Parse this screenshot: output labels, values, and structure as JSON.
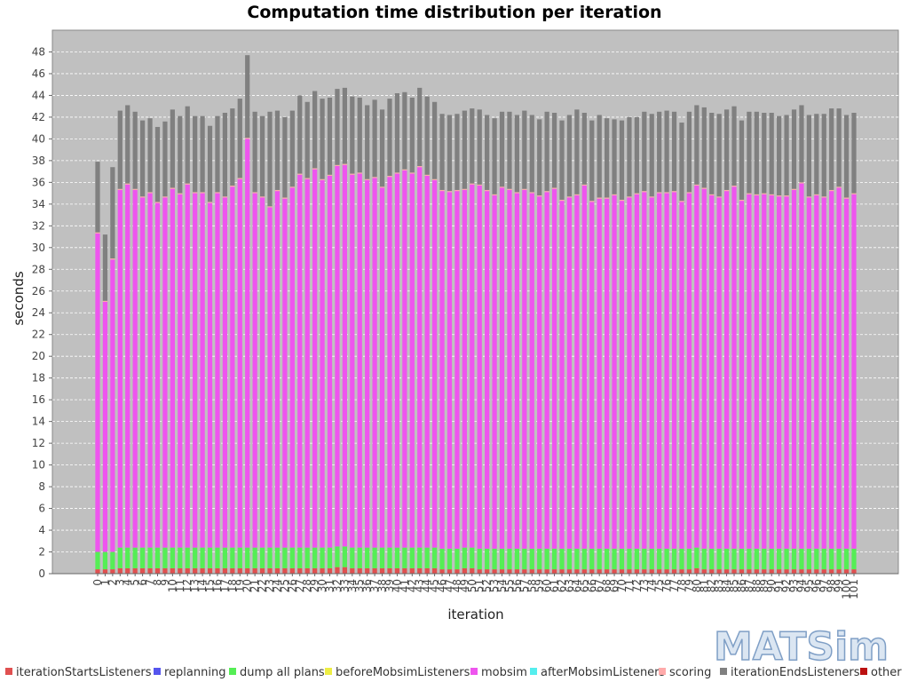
{
  "chart_data": {
    "type": "bar",
    "stacked": true,
    "title": "Computation time distribution per iteration",
    "xlabel": "iteration",
    "ylabel": "seconds",
    "ylim": [
      0,
      50
    ],
    "yticks": [
      0,
      2,
      4,
      6,
      8,
      10,
      12,
      14,
      16,
      18,
      20,
      22,
      24,
      26,
      28,
      30,
      32,
      34,
      36,
      38,
      40,
      42,
      44,
      46,
      48
    ],
    "grid": true,
    "legend_position": "bottom",
    "plot_background": "#c0c0c0",
    "categories": [
      "0",
      "1",
      "2",
      "3",
      "4",
      "5",
      "6",
      "7",
      "8",
      "9",
      "10",
      "11",
      "12",
      "13",
      "14",
      "15",
      "16",
      "17",
      "18",
      "19",
      "20",
      "21",
      "22",
      "23",
      "24",
      "25",
      "26",
      "27",
      "28",
      "29",
      "30",
      "31",
      "32",
      "33",
      "34",
      "35",
      "36",
      "37",
      "38",
      "39",
      "40",
      "41",
      "42",
      "43",
      "44",
      "45",
      "46",
      "47",
      "48",
      "49",
      "50",
      "51",
      "52",
      "53",
      "54",
      "55",
      "56",
      "57",
      "58",
      "59",
      "60",
      "61",
      "62",
      "63",
      "64",
      "65",
      "66",
      "67",
      "68",
      "69",
      "70",
      "71",
      "72",
      "73",
      "74",
      "75",
      "76",
      "77",
      "78",
      "79",
      "80",
      "81",
      "82",
      "83",
      "84",
      "85",
      "86",
      "87",
      "88",
      "89",
      "90",
      "91",
      "92",
      "93",
      "94",
      "95",
      "96",
      "97",
      "98",
      "99",
      "100",
      "101"
    ],
    "series": [
      {
        "name": "iterationStartsListeners",
        "color": "#e05050",
        "values": [
          0.4,
          0.4,
          0.4,
          0.5,
          0.5,
          0.5,
          0.5,
          0.5,
          0.5,
          0.5,
          0.5,
          0.5,
          0.5,
          0.5,
          0.5,
          0.5,
          0.5,
          0.5,
          0.5,
          0.5,
          0.5,
          0.5,
          0.5,
          0.5,
          0.5,
          0.5,
          0.5,
          0.5,
          0.5,
          0.5,
          0.5,
          0.5,
          0.6,
          0.6,
          0.5,
          0.5,
          0.5,
          0.5,
          0.5,
          0.5,
          0.5,
          0.5,
          0.5,
          0.5,
          0.5,
          0.5,
          0.4,
          0.4,
          0.4,
          0.5,
          0.5,
          0.4,
          0.4,
          0.4,
          0.4,
          0.4,
          0.4,
          0.4,
          0.4,
          0.4,
          0.4,
          0.4,
          0.4,
          0.4,
          0.4,
          0.4,
          0.4,
          0.4,
          0.4,
          0.4,
          0.4,
          0.4,
          0.4,
          0.4,
          0.4,
          0.4,
          0.4,
          0.4,
          0.4,
          0.4,
          0.5,
          0.4,
          0.4,
          0.4,
          0.4,
          0.4,
          0.4,
          0.4,
          0.4,
          0.4,
          0.4,
          0.4,
          0.4,
          0.4,
          0.4,
          0.4,
          0.4,
          0.4,
          0.4,
          0.4,
          0.4,
          0.4
        ]
      },
      {
        "name": "replanning",
        "color": "#5555ee",
        "values": [
          0,
          0,
          0,
          0,
          0,
          0,
          0,
          0,
          0,
          0,
          0,
          0,
          0,
          0,
          0,
          0,
          0,
          0,
          0,
          0,
          0,
          0,
          0,
          0,
          0,
          0,
          0,
          0,
          0,
          0,
          0,
          0,
          0,
          0,
          0,
          0,
          0,
          0,
          0,
          0,
          0,
          0,
          0,
          0,
          0,
          0,
          0,
          0,
          0,
          0,
          0,
          0,
          0,
          0,
          0,
          0,
          0,
          0,
          0,
          0,
          0,
          0,
          0,
          0,
          0,
          0,
          0,
          0,
          0,
          0,
          0,
          0,
          0,
          0,
          0,
          0,
          0,
          0,
          0,
          0,
          0,
          0,
          0,
          0,
          0,
          0,
          0,
          0,
          0,
          0,
          0,
          0,
          0,
          0,
          0,
          0,
          0,
          0,
          0,
          0,
          0,
          0
        ]
      },
      {
        "name": "dump all plans",
        "color": "#55ee55",
        "values": [
          1.6,
          1.6,
          1.6,
          1.9,
          1.9,
          1.9,
          1.9,
          1.9,
          1.9,
          1.9,
          1.9,
          1.9,
          1.9,
          1.9,
          1.9,
          1.9,
          1.9,
          1.9,
          1.9,
          1.9,
          1.9,
          1.9,
          1.9,
          1.9,
          1.9,
          1.9,
          1.9,
          1.9,
          1.9,
          1.9,
          1.9,
          1.9,
          1.9,
          1.9,
          1.9,
          1.9,
          1.9,
          1.9,
          1.9,
          1.9,
          1.9,
          1.9,
          1.9,
          1.9,
          1.9,
          1.9,
          1.9,
          1.9,
          1.9,
          1.9,
          1.9,
          1.9,
          1.9,
          1.9,
          1.9,
          1.9,
          1.9,
          1.9,
          1.9,
          1.9,
          1.9,
          1.9,
          1.9,
          1.9,
          1.9,
          1.9,
          1.9,
          1.9,
          1.9,
          1.9,
          1.9,
          1.9,
          1.9,
          1.9,
          1.9,
          1.9,
          1.9,
          1.9,
          1.9,
          1.9,
          1.9,
          1.9,
          1.9,
          1.9,
          1.9,
          1.9,
          1.9,
          1.9,
          1.9,
          1.9,
          1.9,
          1.9,
          1.9,
          1.9,
          1.9,
          1.9,
          1.9,
          1.9,
          1.9,
          1.9,
          1.9,
          1.9
        ]
      },
      {
        "name": "beforeMobsimListeners",
        "color": "#eeee44",
        "values": [
          0,
          0,
          0,
          0,
          0,
          0,
          0,
          0,
          0,
          0,
          0,
          0,
          0,
          0,
          0,
          0,
          0,
          0,
          0,
          0,
          0,
          0,
          0,
          0,
          0,
          0,
          0,
          0,
          0,
          0,
          0,
          0,
          0,
          0,
          0,
          0,
          0,
          0,
          0,
          0,
          0,
          0,
          0,
          0,
          0,
          0,
          0,
          0,
          0,
          0,
          0,
          0,
          0,
          0,
          0,
          0,
          0,
          0,
          0,
          0,
          0,
          0,
          0,
          0,
          0,
          0,
          0,
          0,
          0,
          0,
          0,
          0,
          0,
          0,
          0,
          0,
          0,
          0,
          0,
          0,
          0,
          0,
          0,
          0,
          0,
          0,
          0,
          0,
          0,
          0,
          0,
          0,
          0,
          0,
          0,
          0,
          0,
          0,
          0,
          0,
          0,
          0
        ]
      },
      {
        "name": "mobsim",
        "color": "#ee55ee",
        "values": [
          29.3,
          23.0,
          26.9,
          32.9,
          33.4,
          32.9,
          32.2,
          32.6,
          31.7,
          32.2,
          33.0,
          32.5,
          33.4,
          32.6,
          32.6,
          31.7,
          32.6,
          32.2,
          33.2,
          33.9,
          37.6,
          32.6,
          32.2,
          31.3,
          32.8,
          32.1,
          33.1,
          34.3,
          33.9,
          34.8,
          33.8,
          34.2,
          35.0,
          35.1,
          34.3,
          34.4,
          33.8,
          34.0,
          33.1,
          34.1,
          34.4,
          34.7,
          34.4,
          35.0,
          34.2,
          33.8,
          32.9,
          32.8,
          32.9,
          32.9,
          33.4,
          33.4,
          32.9,
          32.5,
          33.2,
          33.0,
          32.7,
          33.0,
          32.7,
          32.4,
          32.8,
          33.1,
          32.0,
          32.3,
          32.5,
          33.4,
          31.9,
          32.2,
          32.2,
          32.5,
          32.0,
          32.3,
          32.6,
          32.8,
          32.3,
          32.7,
          32.7,
          32.8,
          31.9,
          32.7,
          33.3,
          33.1,
          32.5,
          32.3,
          32.9,
          33.3,
          32.0,
          32.6,
          32.5,
          32.6,
          32.5,
          32.4,
          32.4,
          33.0,
          33.6,
          32.3,
          32.5,
          32.3,
          32.9,
          33.2,
          32.2,
          32.6
        ]
      },
      {
        "name": "afterMobsimListeners",
        "color": "#55eeee",
        "values": [
          0,
          0,
          0,
          0,
          0,
          0,
          0,
          0,
          0,
          0,
          0,
          0,
          0,
          0,
          0,
          0,
          0,
          0,
          0,
          0,
          0,
          0,
          0,
          0,
          0,
          0,
          0,
          0,
          0,
          0,
          0,
          0,
          0,
          0,
          0,
          0,
          0,
          0,
          0,
          0,
          0,
          0,
          0,
          0,
          0,
          0,
          0,
          0,
          0,
          0,
          0,
          0,
          0,
          0,
          0,
          0,
          0,
          0,
          0,
          0,
          0,
          0,
          0,
          0,
          0,
          0,
          0,
          0,
          0,
          0,
          0,
          0,
          0,
          0,
          0,
          0,
          0,
          0,
          0,
          0,
          0,
          0,
          0,
          0,
          0,
          0,
          0,
          0,
          0,
          0,
          0,
          0,
          0,
          0,
          0,
          0,
          0,
          0,
          0,
          0,
          0,
          0
        ]
      },
      {
        "name": "scoring",
        "color": "#ffaaaa",
        "values": [
          0.1,
          0.1,
          0.1,
          0.1,
          0.1,
          0.1,
          0.1,
          0.1,
          0.1,
          0.1,
          0.1,
          0.1,
          0.1,
          0.1,
          0.1,
          0.1,
          0.1,
          0.1,
          0.1,
          0.1,
          0.1,
          0.1,
          0.1,
          0.1,
          0.1,
          0.1,
          0.1,
          0.1,
          0.1,
          0.1,
          0.1,
          0.1,
          0.1,
          0.1,
          0.1,
          0.1,
          0.1,
          0.1,
          0.1,
          0.1,
          0.1,
          0.1,
          0.1,
          0.1,
          0.1,
          0.1,
          0.1,
          0.1,
          0.1,
          0.1,
          0.1,
          0.1,
          0.1,
          0.1,
          0.1,
          0.1,
          0.1,
          0.1,
          0.1,
          0.1,
          0.1,
          0.1,
          0.1,
          0.1,
          0.1,
          0.1,
          0.1,
          0.1,
          0.1,
          0.1,
          0.1,
          0.1,
          0.1,
          0.1,
          0.1,
          0.1,
          0.1,
          0.1,
          0.1,
          0.1,
          0.1,
          0.1,
          0.1,
          0.1,
          0.1,
          0.1,
          0.1,
          0.1,
          0.1,
          0.1,
          0.1,
          0.1,
          0.1,
          0.1,
          0.1,
          0.1,
          0.1,
          0.1,
          0.1,
          0.1,
          0.1,
          0.1
        ]
      },
      {
        "name": "iterationEndsListeners",
        "color": "#808080",
        "values": [
          6.5,
          6.1,
          8.4,
          7.2,
          7.2,
          7.1,
          7.0,
          6.8,
          6.9,
          6.9,
          7.2,
          7.1,
          7.1,
          7.0,
          7.0,
          7.0,
          7.0,
          7.7,
          7.1,
          7.3,
          7.6,
          7.4,
          7.4,
          8.7,
          7.3,
          7.4,
          7.0,
          7.2,
          7.0,
          7.1,
          7.4,
          7.1,
          7.0,
          7.0,
          7.1,
          6.9,
          6.8,
          7.1,
          7.1,
          7.1,
          7.3,
          7.1,
          6.9,
          7.2,
          7.2,
          7.1,
          7.0,
          7.0,
          7.0,
          7.2,
          6.9,
          6.9,
          6.9,
          7.0,
          6.9,
          7.1,
          7.1,
          7.2,
          7.1,
          7.0,
          7.3,
          6.9,
          7.3,
          7.5,
          7.8,
          6.6,
          7.4,
          7.6,
          7.3,
          6.9,
          7.3,
          7.3,
          7.0,
          7.3,
          7.6,
          7.4,
          7.5,
          7.3,
          7.2,
          7.4,
          7.3,
          7.4,
          7.5,
          7.6,
          7.4,
          7.3,
          7.3,
          7.5,
          7.6,
          7.4,
          7.5,
          7.3,
          7.4,
          7.3,
          7.1,
          7.5,
          7.4,
          7.6,
          7.5,
          7.2,
          7.6,
          7.4
        ]
      },
      {
        "name": "other",
        "color": "#bb1111",
        "values": [
          0,
          0,
          0,
          0,
          0,
          0,
          0,
          0,
          0,
          0,
          0,
          0,
          0,
          0,
          0,
          0,
          0,
          0,
          0,
          0,
          0,
          0,
          0,
          0,
          0,
          0,
          0,
          0,
          0,
          0,
          0,
          0,
          0,
          0,
          0,
          0,
          0,
          0,
          0,
          0,
          0,
          0,
          0,
          0,
          0,
          0,
          0,
          0,
          0,
          0,
          0,
          0,
          0,
          0,
          0,
          0,
          0,
          0,
          0,
          0,
          0,
          0,
          0,
          0,
          0,
          0,
          0,
          0,
          0,
          0,
          0,
          0,
          0,
          0,
          0,
          0,
          0,
          0,
          0,
          0,
          0,
          0,
          0,
          0,
          0,
          0,
          0,
          0,
          0,
          0,
          0,
          0,
          0,
          0,
          0,
          0,
          0,
          0,
          0,
          0,
          0,
          0
        ]
      }
    ]
  },
  "logo": {
    "text": "MATSim"
  }
}
